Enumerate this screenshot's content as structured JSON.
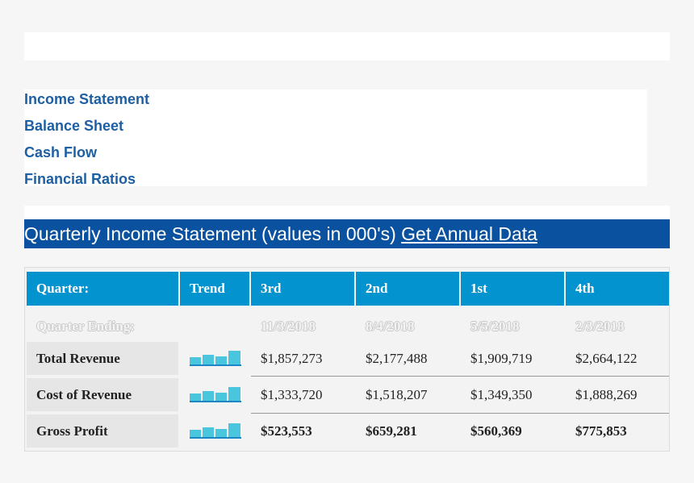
{
  "nav": {
    "items": [
      {
        "label": "Income Statement"
      },
      {
        "label": "Balance Sheet"
      },
      {
        "label": "Cash Flow"
      },
      {
        "label": "Financial Ratios"
      }
    ]
  },
  "section": {
    "title": "Quarterly Income Statement (values in 000's)",
    "link": "Get Annual Data"
  },
  "colors": {
    "title_bar": "#0a51a0",
    "header": "#0394cf",
    "trend_bar": "#49c6de",
    "link": "#1d5fa3"
  },
  "table": {
    "headers": [
      "Quarter:",
      "Trend",
      "3rd",
      "2nd",
      "1st",
      "4th"
    ],
    "endings_label": "Quarter Ending:",
    "endings": [
      "11/3/2018",
      "8/4/2018",
      "5/5/2018",
      "2/3/2018"
    ],
    "rows": [
      {
        "label": "Total Revenue",
        "values": [
          "$1,857,273",
          "$2,177,488",
          "$1,909,719",
          "$2,664,122"
        ],
        "bold": false
      },
      {
        "label": "Cost of Revenue",
        "values": [
          "$1,333,720",
          "$1,518,207",
          "$1,349,350",
          "$1,888,269"
        ],
        "bold": false
      },
      {
        "label": "Gross Profit",
        "values": [
          "$523,553",
          "$659,281",
          "$560,369",
          "$775,853"
        ],
        "bold": true
      }
    ]
  }
}
